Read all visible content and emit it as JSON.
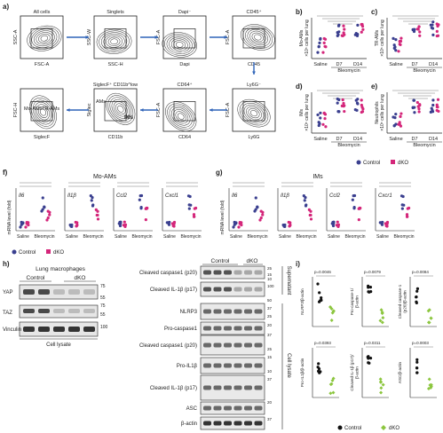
{
  "panels": {
    "a": {
      "letter": "a)",
      "gates": [
        {
          "title": "All cells",
          "x": "FSC-A",
          "y": "SSC-A"
        },
        {
          "title": "Singlets",
          "x": "SSC-H",
          "y": "SSC-W"
        },
        {
          "title": "Dapi⁻",
          "x": "Dapi",
          "y": "FSC-A"
        },
        {
          "title": "CD45⁺",
          "x": "CD45",
          "y": "FSC-A"
        },
        {
          "title": "Ly6G⁻",
          "x": "Ly6G",
          "y": "FSC-A"
        },
        {
          "title": "CD64⁺",
          "x": "CD64",
          "y": "FSC-A"
        },
        {
          "title": "SiglecF⁺ CD11b^low",
          "x": "CD11b",
          "y": "Siglec"
        },
        {
          "title": "",
          "x": "SiglecF",
          "y": "FSC-H"
        }
      ],
      "gate_labels": {
        "ams": "AMs",
        "ims": "IMs",
        "mo": "Mo-AMs",
        "tr": "TR-AMs"
      }
    },
    "b": {
      "letter": "b)",
      "ylabel": "Mo-AMs\n×10⁵ cells per lung"
    },
    "c": {
      "letter": "c)",
      "ylabel": "TR-AMs\n×10⁵ cells per lung"
    },
    "d": {
      "letter": "d)",
      "ylabel": "IMs\n×10⁵ cells per lung"
    },
    "e": {
      "letter": "e)",
      "ylabel": "Neutrophils\n×10⁵ cells per lung"
    },
    "be_xticks": [
      "Saline",
      "D7",
      "D14"
    ],
    "be_xgroup": "Bleomycin",
    "legend_ctrl": "Control",
    "legend_dko": "dKO",
    "f": {
      "letter": "f)",
      "title": "Mo-AMs",
      "genes": [
        "Il6",
        "Il1β",
        "Ccl2",
        "Cxcl1"
      ]
    },
    "g": {
      "letter": "g)",
      "title": "IMs",
      "genes": [
        "Il6",
        "Il1β",
        "Ccl2",
        "Cxcr1"
      ]
    },
    "fg_ylabel": "mRNA level (fold)",
    "fg_xticks": [
      "Saline",
      "Bleomycin"
    ],
    "h": {
      "letter": "h)",
      "title": "Lung macrophages",
      "cols": [
        "Control",
        "dKO"
      ],
      "blots": [
        "YAP",
        "TAZ",
        "Vinculin"
      ],
      "mw": [
        "75",
        "55",
        "75",
        "55",
        "100"
      ],
      "footer": "Cell lysate"
    },
    "right_blot": {
      "cols": [
        "Control",
        "dKO"
      ],
      "rows": [
        "Cleaved caspase1 (p20)",
        "Cleaved IL-1β (p17)",
        "NLRP3",
        "Pro-caspase1",
        "Cleaved caspase1 (p20)",
        "Pro-IL1β",
        "Cleaved IL-1β (p17)",
        "ASC",
        "β-actin"
      ],
      "mw": [
        "25",
        "15",
        "10",
        "100",
        "50",
        "37",
        "25",
        "20",
        "37",
        "25",
        "15",
        "10",
        "37",
        "20",
        "37"
      ],
      "side_top": "Supernatant",
      "side_bottom": "Cell lysate"
    },
    "i": {
      "letter": "i)",
      "plots": [
        {
          "ylabel": "NLRP3/β-actin",
          "p": "p=0.0046"
        },
        {
          "ylabel": "Pro-caspase-1/\nβ-actin",
          "p": "p=0.0079"
        },
        {
          "ylabel": "Cleaved caspase-1\n(p20)/β-actin",
          "p": "p=0.0084"
        },
        {
          "ylabel": "Pro-IL1β/β-actin",
          "p": "p=0.0393"
        },
        {
          "ylabel": "Cleaved IL-1β (p17)/\nβ-actin",
          "p": "p=0.0311"
        },
        {
          "ylabel": "ASC/β-actin",
          "p": "p=0.0003"
        }
      ]
    }
  },
  "colors": {
    "control": "#3a3f8f",
    "dko": "#d4267a",
    "green": "#8cc63f",
    "black": "#111111",
    "arrow": "#2e63b8"
  }
}
